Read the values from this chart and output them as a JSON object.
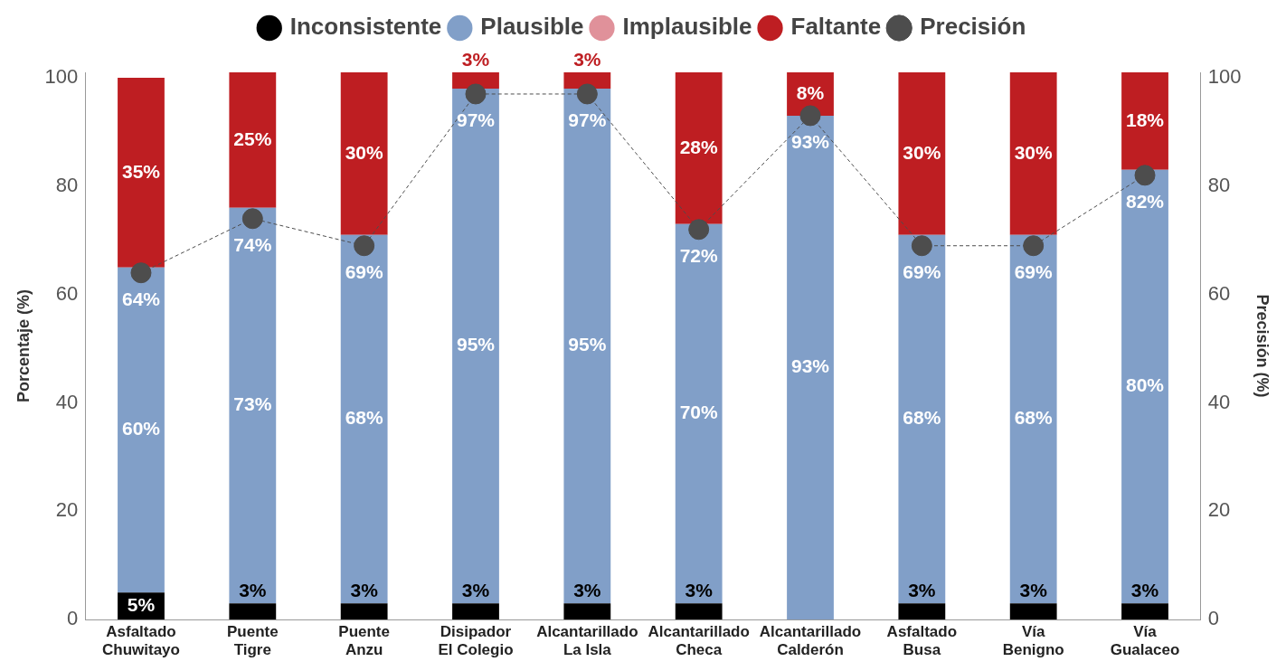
{
  "chart_data": {
    "type": "bar",
    "stacked": true,
    "categories": [
      "Asfaltado Chuwitayo",
      "Puente Tigre",
      "Puente Anzu",
      "Disipador El Colegio",
      "Alcantarillado La Isla",
      "Alcantarillado Checa",
      "Alcantarillado Calderón",
      "Asfaltado Busa",
      "Vía Benigno",
      "Vía Gualaceo"
    ],
    "series": [
      {
        "name": "Inconsistente",
        "color": "#000000",
        "values": [
          5,
          3,
          3,
          3,
          3,
          3,
          0,
          3,
          3,
          3
        ],
        "value_labels": [
          "5%",
          "3%",
          "3%",
          "3%",
          "3%",
          "3%",
          null,
          "3%",
          "3%",
          "3%"
        ]
      },
      {
        "name": "Plausible",
        "color": "#819fc8",
        "values": [
          60,
          73,
          68,
          95,
          95,
          70,
          93,
          68,
          68,
          80
        ],
        "value_labels": [
          "60%",
          "73%",
          "68%",
          "95%",
          "95%",
          "70%",
          "93%",
          "68%",
          "68%",
          "80%"
        ]
      },
      {
        "name": "Implausible",
        "color": "#e0919a",
        "values": [
          0,
          0,
          0,
          0,
          0,
          0,
          0,
          0,
          0,
          0
        ]
      },
      {
        "name": "Faltante",
        "color": "#be1e22",
        "values": [
          35,
          25,
          30,
          3,
          3,
          28,
          8,
          30,
          30,
          18
        ],
        "value_labels": [
          "35%",
          "25%",
          "30%",
          "3%",
          "3%",
          "28%",
          "8%",
          "30%",
          "30%",
          "18%"
        ]
      },
      {
        "name": "Precisión",
        "type": "line",
        "axis": "y2",
        "color": "#4d4d4d",
        "line_style": "dashed",
        "marker": "circle",
        "values": [
          64,
          74,
          69,
          97,
          97,
          72,
          93,
          69,
          69,
          82
        ],
        "value_labels": [
          "64%",
          "74%",
          "69%",
          "97%",
          "97%",
          "72%",
          "93%",
          "69%",
          "69%",
          "82%"
        ]
      }
    ],
    "ylabel": "Porcentaje (%)",
    "y2label": "Precisión (%)",
    "ylim": [
      0,
      101
    ],
    "yticks": [
      0,
      20,
      40,
      60,
      80,
      100
    ],
    "y2lim": [
      0,
      101
    ],
    "y2ticks": [
      0,
      20,
      40,
      60,
      80,
      100
    ],
    "grid": false,
    "legend": "top"
  }
}
